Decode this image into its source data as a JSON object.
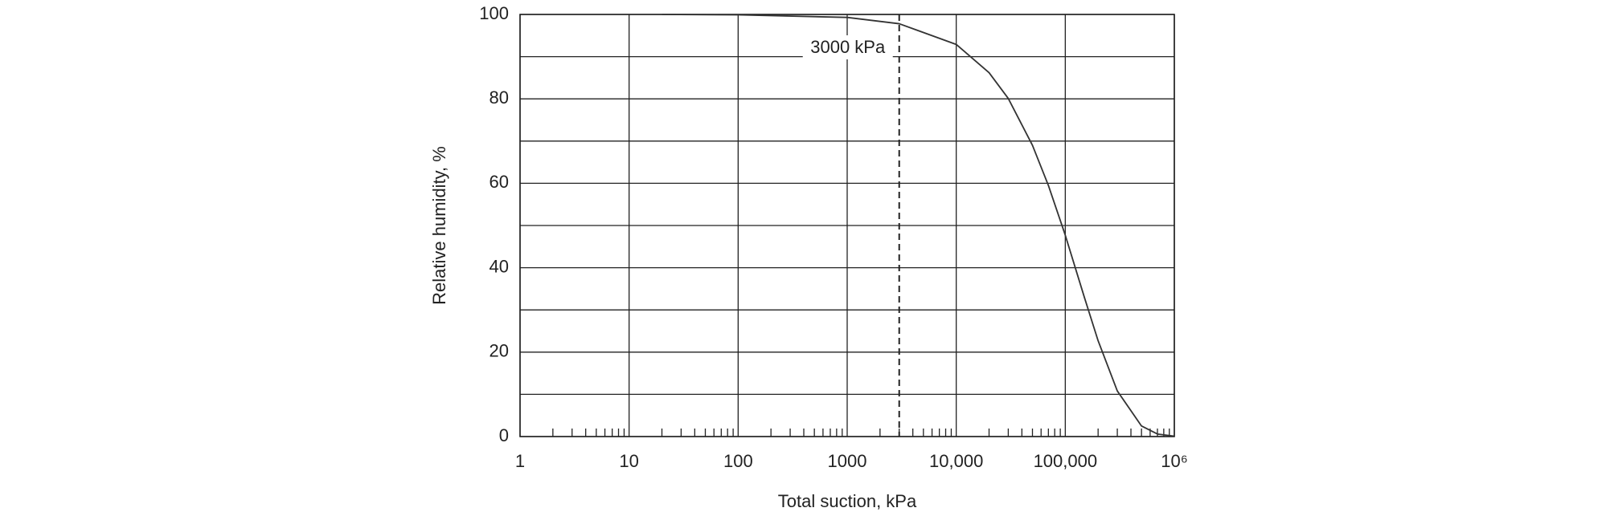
{
  "chart_data": {
    "type": "line",
    "xscale": "log",
    "x_label": "Total suction, kPa",
    "y_label": "Relative humidity, %",
    "x": [
      20,
      100,
      1000,
      3000,
      10000,
      20000,
      30000,
      50000,
      70000,
      100000,
      150000,
      200000,
      300000,
      500000,
      700000,
      1000000
    ],
    "series": [
      {
        "color": "#333333",
        "values": [
          100,
          99.9,
          99.3,
          97.8,
          92.9,
          86.2,
          80.1,
          69.0,
          59.5,
          47.7,
          32.9,
          22.7,
          10.8,
          2.5,
          0.6,
          0.1
        ]
      }
    ],
    "xlim": [
      1,
      1000000
    ],
    "xticks": [
      1,
      10,
      100,
      1000,
      {
        "value": 10000,
        "label": "10,000"
      },
      {
        "value": 100000,
        "label": "100,000"
      },
      {
        "value": 1000000,
        "label": "10⁶"
      }
    ],
    "ylim": [
      0,
      100
    ],
    "yticks": [
      0,
      20,
      40,
      60,
      80,
      100
    ],
    "y_minor_grid": [
      10,
      30,
      50,
      70,
      90
    ],
    "grid": true,
    "annotations": [
      {
        "text": "3000 kPa",
        "x": 3000
      }
    ]
  }
}
